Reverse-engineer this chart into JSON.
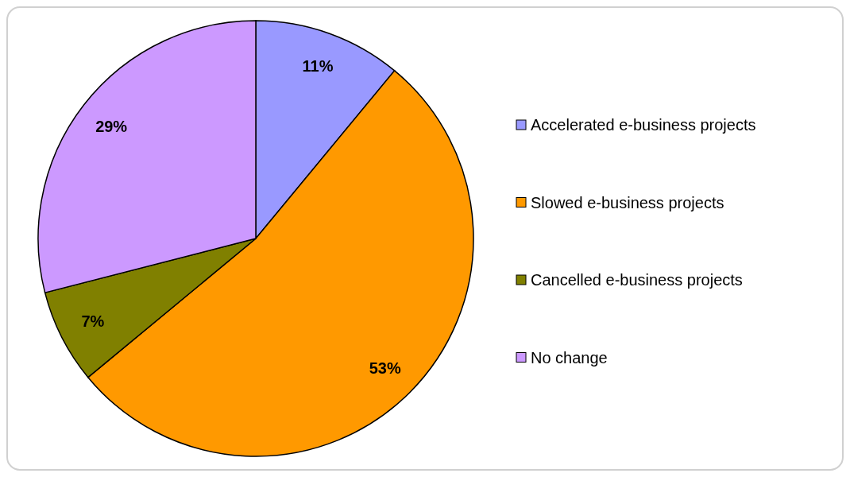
{
  "chart_data": {
    "type": "pie",
    "categories": [
      "Accelerated e-business projects",
      "Slowed e-business projects",
      "Cancelled e-business projects",
      "No change"
    ],
    "values": [
      11,
      53,
      7,
      29
    ],
    "colors": [
      "#9999ff",
      "#ff9900",
      "#808000",
      "#cc99ff"
    ],
    "value_labels": [
      "11%",
      "53%",
      "7%",
      "29%"
    ],
    "legend": "right"
  }
}
